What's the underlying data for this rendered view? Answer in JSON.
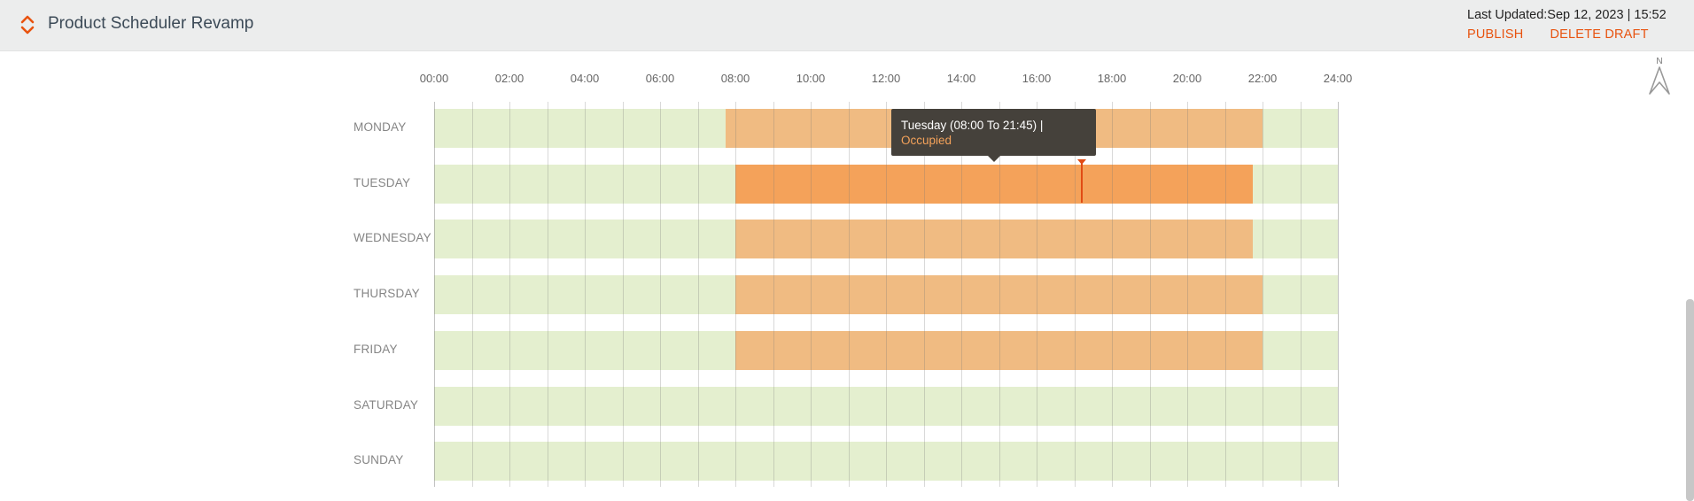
{
  "header": {
    "title": "Product Scheduler Revamp",
    "icon": "sort-chevrons-icon",
    "last_updated": "Last Updated:Sep 12, 2023 | 15:52",
    "publish_label": "PUBLISH",
    "delete_draft_label": "DELETE DRAFT"
  },
  "compass": {
    "icon": "north-arrow-icon",
    "label": "N"
  },
  "timeline": {
    "time_labels": [
      "00:00",
      "02:00",
      "04:00",
      "06:00",
      "08:00",
      "10:00",
      "12:00",
      "14:00",
      "16:00",
      "18:00",
      "20:00",
      "22:00",
      "24:00"
    ],
    "days": [
      {
        "label": "MONDAY"
      },
      {
        "label": "TUESDAY"
      },
      {
        "label": "WEDNESDAY"
      },
      {
        "label": "THURSDAY"
      },
      {
        "label": "FRIDAY"
      },
      {
        "label": "SATURDAY"
      },
      {
        "label": "SUNDAY"
      }
    ],
    "slots": [
      {
        "day": "MONDAY",
        "start": "07:45",
        "end": "22:00",
        "status": "Occupied"
      },
      {
        "day": "TUESDAY",
        "start": "08:00",
        "end": "21:45",
        "status": "Occupied",
        "selected": true
      },
      {
        "day": "WEDNESDAY",
        "start": "08:00",
        "end": "21:45",
        "status": "Occupied"
      },
      {
        "day": "THURSDAY",
        "start": "08:00",
        "end": "22:00",
        "status": "Occupied"
      },
      {
        "day": "FRIDAY",
        "start": "08:00",
        "end": "22:00",
        "status": "Occupied"
      }
    ],
    "current_time_marker": "17:10"
  },
  "tooltip": {
    "line1": "Tuesday (08:00 To 21:45) |",
    "line2": "Occupied"
  },
  "colors": {
    "accent": "#e8530f",
    "free": "#e4efcf",
    "occupied": "#f0bb82",
    "occupied_selected": "#f4a25a",
    "tooltip_bg": "#45413b"
  }
}
